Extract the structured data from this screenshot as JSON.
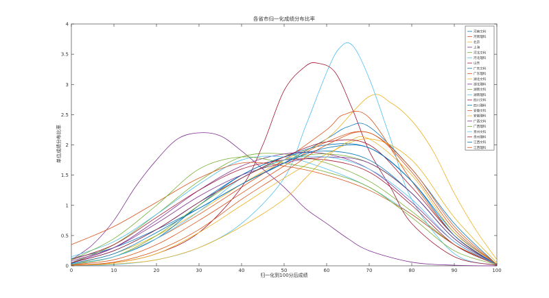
{
  "chart_data": {
    "type": "line",
    "title": "各省市归一化成绩分布比率",
    "xlabel": "归一化到100分后成绩",
    "ylabel": "单位成绩分布比率",
    "xlim": [
      0,
      100
    ],
    "ylim": [
      0,
      4
    ],
    "xticks": [
      0,
      10,
      20,
      30,
      40,
      50,
      60,
      70,
      80,
      90,
      100
    ],
    "yticks": [
      0,
      0.5,
      1,
      1.5,
      2,
      2.5,
      3,
      3.5,
      4
    ],
    "grid": false,
    "legend_position": "top-right",
    "series": [
      {
        "name": "河南文科",
        "color": "#0072bd",
        "points": [
          [
            0,
            0.12
          ],
          [
            10,
            0.3
          ],
          [
            20,
            0.6
          ],
          [
            30,
            0.95
          ],
          [
            40,
            1.35
          ],
          [
            50,
            1.7
          ],
          [
            60,
            2.1
          ],
          [
            65,
            2.3
          ],
          [
            70,
            2.3
          ],
          [
            80,
            1.6
          ],
          [
            90,
            0.7
          ],
          [
            100,
            0.02
          ]
        ]
      },
      {
        "name": "河南理科",
        "color": "#d95319",
        "points": [
          [
            0,
            0.02
          ],
          [
            10,
            0.15
          ],
          [
            20,
            0.45
          ],
          [
            30,
            0.85
          ],
          [
            40,
            1.3
          ],
          [
            50,
            1.75
          ],
          [
            60,
            2.25
          ],
          [
            64,
            2.5
          ],
          [
            70,
            2.45
          ],
          [
            80,
            1.4
          ],
          [
            90,
            0.5
          ],
          [
            100,
            0.01
          ]
        ]
      },
      {
        "name": "北京",
        "color": "#edb120",
        "points": [
          [
            0,
            0.02
          ],
          [
            10,
            0.2
          ],
          [
            20,
            0.5
          ],
          [
            30,
            0.9
          ],
          [
            40,
            1.35
          ],
          [
            50,
            1.75
          ],
          [
            60,
            2.1
          ],
          [
            70,
            2.8
          ],
          [
            75,
            2.7
          ],
          [
            80,
            2.4
          ],
          [
            85,
            1.9
          ],
          [
            90,
            1.2
          ],
          [
            95,
            0.6
          ],
          [
            100,
            0.1
          ]
        ]
      },
      {
        "name": "上海",
        "color": "#7e2f8e",
        "points": [
          [
            0,
            0.1
          ],
          [
            5,
            0.35
          ],
          [
            10,
            0.75
          ],
          [
            15,
            1.3
          ],
          [
            20,
            1.75
          ],
          [
            25,
            2.1
          ],
          [
            30,
            2.2
          ],
          [
            35,
            2.15
          ],
          [
            40,
            1.9
          ],
          [
            45,
            1.6
          ],
          [
            50,
            1.3
          ],
          [
            55,
            0.95
          ],
          [
            60,
            0.7
          ],
          [
            65,
            0.45
          ],
          [
            70,
            0.25
          ],
          [
            80,
            0.06
          ],
          [
            90,
            0.01
          ],
          [
            100,
            0
          ]
        ]
      },
      {
        "name": "河北文科",
        "color": "#77ac30",
        "points": [
          [
            0,
            0.05
          ],
          [
            10,
            0.35
          ],
          [
            20,
            0.85
          ],
          [
            30,
            1.4
          ],
          [
            40,
            1.8
          ],
          [
            50,
            1.85
          ],
          [
            60,
            1.7
          ],
          [
            70,
            1.4
          ],
          [
            80,
            0.9
          ],
          [
            90,
            0.35
          ],
          [
            100,
            0.02
          ]
        ]
      },
      {
        "name": "河北理科",
        "color": "#4dbeee",
        "points": [
          [
            0,
            0.01
          ],
          [
            10,
            0.02
          ],
          [
            20,
            0.1
          ],
          [
            30,
            0.3
          ],
          [
            40,
            0.7
          ],
          [
            50,
            1.45
          ],
          [
            55,
            2.3
          ],
          [
            60,
            3.2
          ],
          [
            63,
            3.6
          ],
          [
            66,
            3.65
          ],
          [
            70,
            3.1
          ],
          [
            75,
            2.1
          ],
          [
            80,
            1.1
          ],
          [
            90,
            0.2
          ],
          [
            100,
            0.01
          ]
        ]
      },
      {
        "name": "山东",
        "color": "#a2142f",
        "points": [
          [
            0,
            0.01
          ],
          [
            10,
            0.05
          ],
          [
            20,
            0.2
          ],
          [
            30,
            0.55
          ],
          [
            40,
            1.3
          ],
          [
            45,
            2.0
          ],
          [
            50,
            2.9
          ],
          [
            55,
            3.3
          ],
          [
            58,
            3.35
          ],
          [
            62,
            3.2
          ],
          [
            66,
            2.6
          ],
          [
            70,
            1.9
          ],
          [
            75,
            1.3
          ],
          [
            80,
            0.7
          ],
          [
            90,
            0.15
          ],
          [
            100,
            0.01
          ]
        ]
      },
      {
        "name": "广东文科",
        "color": "#0072bd",
        "points": [
          [
            0,
            0.03
          ],
          [
            10,
            0.15
          ],
          [
            20,
            0.45
          ],
          [
            30,
            1.0
          ],
          [
            40,
            1.5
          ],
          [
            50,
            1.8
          ],
          [
            60,
            2.0
          ],
          [
            70,
            1.95
          ],
          [
            80,
            1.4
          ],
          [
            90,
            0.55
          ],
          [
            100,
            0.03
          ]
        ]
      },
      {
        "name": "广东理科",
        "color": "#d95319",
        "points": [
          [
            0,
            0.02
          ],
          [
            10,
            0.1
          ],
          [
            20,
            0.35
          ],
          [
            30,
            0.75
          ],
          [
            40,
            1.2
          ],
          [
            50,
            1.65
          ],
          [
            60,
            2.05
          ],
          [
            70,
            2.2
          ],
          [
            80,
            1.6
          ],
          [
            90,
            0.65
          ],
          [
            100,
            0.02
          ]
        ]
      },
      {
        "name": "湖北文科",
        "color": "#edb120",
        "points": [
          [
            0,
            0.01
          ],
          [
            10,
            0.05
          ],
          [
            20,
            0.2
          ],
          [
            30,
            0.55
          ],
          [
            40,
            1.0
          ],
          [
            50,
            1.45
          ],
          [
            60,
            1.85
          ],
          [
            70,
            2.1
          ],
          [
            80,
            1.75
          ],
          [
            90,
            0.8
          ],
          [
            100,
            0.05
          ]
        ]
      },
      {
        "name": "湖北理科",
        "color": "#7e2f8e",
        "points": [
          [
            0,
            0.05
          ],
          [
            10,
            0.3
          ],
          [
            20,
            0.75
          ],
          [
            30,
            1.25
          ],
          [
            40,
            1.65
          ],
          [
            50,
            1.85
          ],
          [
            60,
            1.85
          ],
          [
            70,
            1.6
          ],
          [
            80,
            1.05
          ],
          [
            90,
            0.4
          ],
          [
            100,
            0.02
          ]
        ]
      },
      {
        "name": "湖南文科",
        "color": "#77ac30",
        "points": [
          [
            0,
            0.02
          ],
          [
            10,
            0.15
          ],
          [
            20,
            0.5
          ],
          [
            30,
            1.0
          ],
          [
            40,
            1.45
          ],
          [
            50,
            1.75
          ],
          [
            60,
            1.85
          ],
          [
            70,
            1.7
          ],
          [
            80,
            1.2
          ],
          [
            90,
            0.45
          ],
          [
            100,
            0.02
          ]
        ]
      },
      {
        "name": "湖南理科",
        "color": "#4dbeee",
        "points": [
          [
            0,
            0.15
          ],
          [
            10,
            0.4
          ],
          [
            20,
            0.85
          ],
          [
            30,
            1.35
          ],
          [
            40,
            1.75
          ],
          [
            50,
            1.8
          ],
          [
            60,
            1.6
          ],
          [
            70,
            1.3
          ],
          [
            80,
            0.85
          ],
          [
            90,
            0.35
          ],
          [
            100,
            0.03
          ]
        ]
      },
      {
        "name": "四川文科",
        "color": "#a2142f",
        "points": [
          [
            0,
            0.1
          ],
          [
            10,
            0.35
          ],
          [
            20,
            0.8
          ],
          [
            30,
            1.25
          ],
          [
            40,
            1.6
          ],
          [
            50,
            1.75
          ],
          [
            60,
            1.75
          ],
          [
            70,
            1.55
          ],
          [
            80,
            1.0
          ],
          [
            90,
            0.35
          ],
          [
            100,
            0.02
          ]
        ]
      },
      {
        "name": "四川理科",
        "color": "#0072bd",
        "points": [
          [
            0,
            0.05
          ],
          [
            10,
            0.25
          ],
          [
            20,
            0.6
          ],
          [
            30,
            1.05
          ],
          [
            40,
            1.5
          ],
          [
            50,
            1.8
          ],
          [
            60,
            1.9
          ],
          [
            70,
            1.75
          ],
          [
            80,
            1.2
          ],
          [
            90,
            0.45
          ],
          [
            100,
            0.02
          ]
        ]
      },
      {
        "name": "安徽文科",
        "color": "#d95319",
        "points": [
          [
            0,
            0.35
          ],
          [
            10,
            0.65
          ],
          [
            20,
            1.05
          ],
          [
            30,
            1.45
          ],
          [
            40,
            1.7
          ],
          [
            50,
            1.65
          ],
          [
            60,
            1.5
          ],
          [
            70,
            1.25
          ],
          [
            80,
            0.85
          ],
          [
            90,
            0.35
          ],
          [
            100,
            0.03
          ]
        ]
      },
      {
        "name": "安徽理科",
        "color": "#edb120",
        "points": [
          [
            0,
            0.01
          ],
          [
            10,
            0.03
          ],
          [
            20,
            0.1
          ],
          [
            30,
            0.3
          ],
          [
            40,
            0.65
          ],
          [
            50,
            1.1
          ],
          [
            55,
            1.45
          ],
          [
            60,
            1.8
          ],
          [
            65,
            2.05
          ],
          [
            70,
            2.1
          ],
          [
            80,
            1.5
          ],
          [
            90,
            0.55
          ],
          [
            100,
            0.03
          ]
        ]
      },
      {
        "name": "广西文科",
        "color": "#7e2f8e",
        "points": [
          [
            0,
            0.08
          ],
          [
            10,
            0.3
          ],
          [
            20,
            0.7
          ],
          [
            30,
            1.15
          ],
          [
            40,
            1.5
          ],
          [
            50,
            1.7
          ],
          [
            60,
            1.8
          ],
          [
            70,
            1.7
          ],
          [
            80,
            1.2
          ],
          [
            90,
            0.45
          ],
          [
            100,
            0.02
          ]
        ]
      },
      {
        "name": "广西理科",
        "color": "#77ac30",
        "points": [
          [
            0,
            0.1
          ],
          [
            10,
            0.45
          ],
          [
            20,
            1.0
          ],
          [
            30,
            1.6
          ],
          [
            40,
            1.8
          ],
          [
            50,
            1.7
          ],
          [
            60,
            1.55
          ],
          [
            70,
            1.3
          ],
          [
            80,
            0.8
          ],
          [
            90,
            0.25
          ],
          [
            100,
            0.02
          ]
        ]
      },
      {
        "name": "贵州文科",
        "color": "#4dbeee",
        "points": [
          [
            0,
            0.03
          ],
          [
            10,
            0.15
          ],
          [
            20,
            0.45
          ],
          [
            30,
            0.9
          ],
          [
            40,
            1.45
          ],
          [
            50,
            1.75
          ],
          [
            60,
            1.8
          ],
          [
            70,
            1.6
          ],
          [
            80,
            1.1
          ],
          [
            90,
            0.4
          ],
          [
            100,
            0.02
          ]
        ]
      },
      {
        "name": "贵州理科",
        "color": "#a2142f",
        "points": [
          [
            0,
            0.05
          ],
          [
            10,
            0.25
          ],
          [
            20,
            0.6
          ],
          [
            30,
            1.05
          ],
          [
            40,
            1.45
          ],
          [
            50,
            1.8
          ],
          [
            60,
            2.05
          ],
          [
            70,
            2.0
          ],
          [
            80,
            1.3
          ],
          [
            90,
            0.5
          ],
          [
            100,
            0.02
          ]
        ]
      },
      {
        "name": "江西文科",
        "color": "#0072bd",
        "points": [
          [
            0,
            0.04
          ],
          [
            10,
            0.2
          ],
          [
            20,
            0.55
          ],
          [
            30,
            0.95
          ],
          [
            40,
            1.35
          ],
          [
            50,
            1.7
          ],
          [
            60,
            1.95
          ],
          [
            70,
            1.95
          ],
          [
            80,
            1.4
          ],
          [
            90,
            0.5
          ],
          [
            100,
            0.02
          ]
        ]
      },
      {
        "name": "江西理科",
        "color": "#d95319",
        "points": [
          [
            0,
            0.01
          ],
          [
            10,
            0.06
          ],
          [
            20,
            0.25
          ],
          [
            30,
            0.6
          ],
          [
            40,
            1.1
          ],
          [
            50,
            1.55
          ],
          [
            60,
            2.0
          ],
          [
            70,
            2.2
          ],
          [
            80,
            1.55
          ],
          [
            90,
            0.6
          ],
          [
            100,
            0.02
          ]
        ]
      }
    ]
  }
}
